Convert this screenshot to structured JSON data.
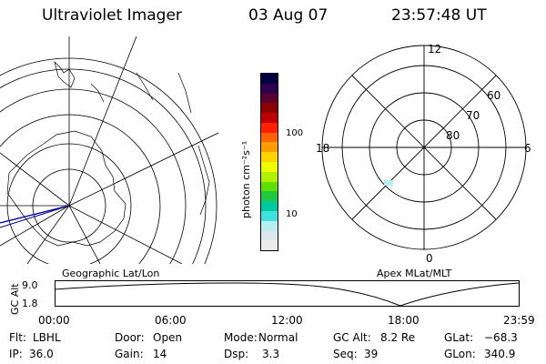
{
  "header": {
    "title": "Ultraviolet Imager",
    "date": "03 Aug 07",
    "time": "23:57:48 UT"
  },
  "colorbar": {
    "unit_label": "photon cm⁻²s⁻¹",
    "ticks": [
      "100",
      "10"
    ],
    "colors": [
      "#000040",
      "#300050",
      "#5a0030",
      "#8a0000",
      "#c00000",
      "#ff2000",
      "#ff6000",
      "#ff9c00",
      "#ffd400",
      "#f0ff00",
      "#b0f000",
      "#60e000",
      "#20c840",
      "#00c8a0",
      "#40e0e0",
      "#b8eef0",
      "#dde8ee",
      "#ececec"
    ]
  },
  "maps": {
    "geographic_label": "Geographic Lat/Lon",
    "apex_label": "Apex MLat/MLT",
    "polar_labels": {
      "top": "12",
      "left": "18",
      "right": "6",
      "bottom": "0"
    },
    "lat_labels": [
      "60",
      "70",
      "80"
    ]
  },
  "altitude_plot": {
    "axis_label": "GC Alt",
    "y_ticks": [
      "9.0",
      "1.8"
    ],
    "x_ticks": [
      "00:00",
      "06:00",
      "12:00",
      "18:00",
      "23:59"
    ]
  },
  "status": {
    "flt_label": "Flt:",
    "flt_value": "LBHL",
    "ip_label": "IP:",
    "ip_value": "36.0",
    "door_label": "Door:",
    "door_value": "Open",
    "gain_label": "Gain:",
    "gain_value": "14",
    "mode_label": "Mode:",
    "mode_value": "Normal",
    "dsp_label": "Dsp:",
    "dsp_value": "3.3",
    "gcalt_label": "GC Alt:",
    "gcalt_value": "8.2 Re",
    "seq_label": "Seq:",
    "seq_value": "39",
    "glat_label": "GLat:",
    "glat_value": "−68.3",
    "glon_label": "GLon:",
    "glon_value": "340.9"
  }
}
